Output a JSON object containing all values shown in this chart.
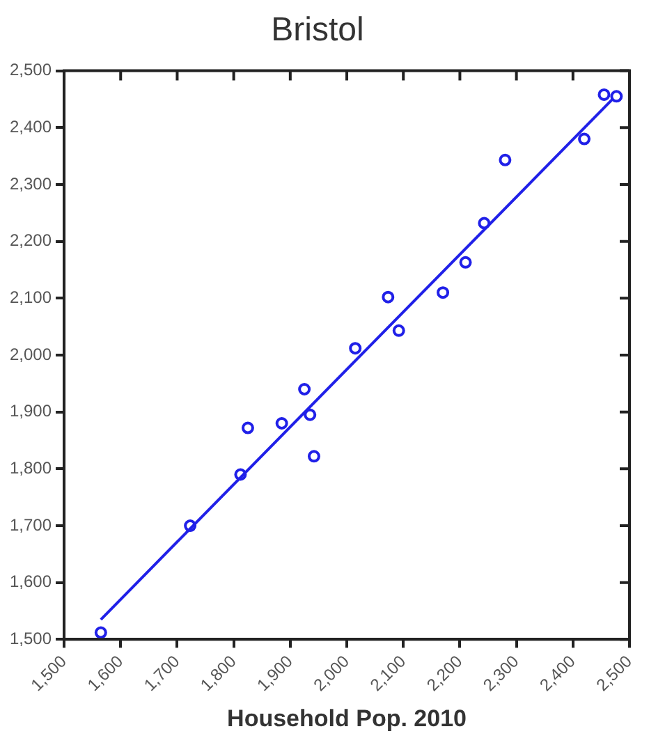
{
  "chart_data": {
    "type": "scatter",
    "title": "Bristol",
    "xlabel": "Household Pop. 2010",
    "xlim": [
      1500,
      2500
    ],
    "xticks": [
      {
        "value": 1500,
        "label": "1,500"
      },
      {
        "value": 1600,
        "label": "1,600"
      },
      {
        "value": 1700,
        "label": "1,700"
      },
      {
        "value": 1800,
        "label": "1,800"
      },
      {
        "value": 1900,
        "label": "1,900"
      },
      {
        "value": 2000,
        "label": "2,000"
      },
      {
        "value": 2100,
        "label": "2,100"
      },
      {
        "value": 2200,
        "label": "2,200"
      },
      {
        "value": 2300,
        "label": "2,300"
      },
      {
        "value": 2400,
        "label": "2,400"
      },
      {
        "value": 2500,
        "label": "2,500"
      }
    ],
    "ylim": [
      1500,
      2500
    ],
    "yticks": [
      {
        "value": 1500,
        "label": "1,500"
      },
      {
        "value": 1600,
        "label": "1,600"
      },
      {
        "value": 1700,
        "label": "1,700"
      },
      {
        "value": 1800,
        "label": "1,800"
      },
      {
        "value": 1900,
        "label": "1,900"
      },
      {
        "value": 2000,
        "label": "2,000"
      },
      {
        "value": 2100,
        "label": "2,100"
      },
      {
        "value": 2200,
        "label": "2,200"
      },
      {
        "value": 2300,
        "label": "2,300"
      },
      {
        "value": 2400,
        "label": "2,400"
      },
      {
        "value": 2500,
        "label": "2,500"
      }
    ],
    "grid": false,
    "legend": false,
    "series": [
      {
        "type": "scatter",
        "marker": "circle",
        "color": "#2020e8",
        "x": [
          1565,
          1723,
          1812,
          1825,
          1885,
          1925,
          1935,
          1942,
          2015,
          2073,
          2092,
          2170,
          2210,
          2243,
          2280,
          2420,
          2455,
          2477
        ],
        "values": [
          1512,
          1700,
          1790,
          1872,
          1880,
          1940,
          1895,
          1822,
          2012,
          2102,
          2043,
          2110,
          2163,
          2232,
          2343,
          2380,
          2458,
          2455
        ]
      },
      {
        "type": "line",
        "color": "#2020e8",
        "x": [
          1565,
          2470
        ],
        "values": [
          1535,
          2450
        ]
      }
    ]
  }
}
